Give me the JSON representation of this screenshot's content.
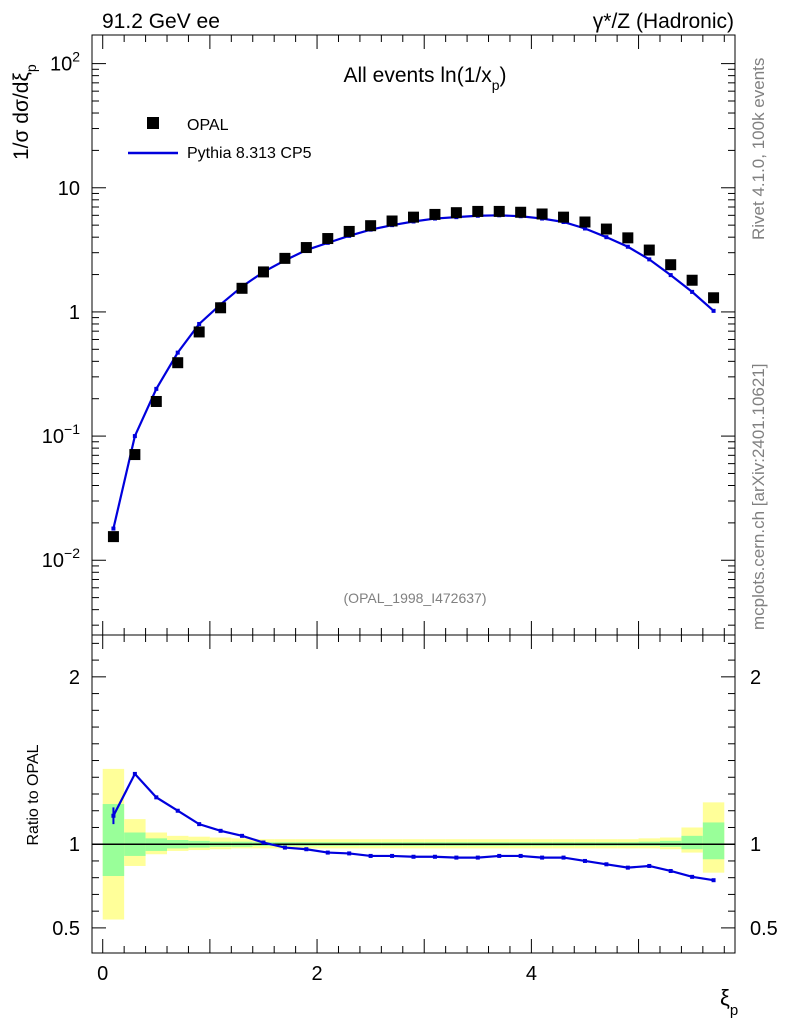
{
  "header": {
    "left": "91.2 GeV ee",
    "right": "γ*/Z (Hadronic)"
  },
  "side_text": {
    "rivet": "Rivet 4.1.0,  100k events",
    "mcplots": "mcplots.cern.ch [arXiv:2401.10621]"
  },
  "chart_data": [
    {
      "type": "scatter",
      "panel": "main",
      "title": "All events ln(1/x_p)",
      "title_main": "All events ln(1/x",
      "title_sub": "p",
      "title_close": ")",
      "ylabel": "1/σ  dσ/dξ_p",
      "ylabel_main": "1/σ   dσ/dξ",
      "ylabel_sub": "p",
      "yscale": "log",
      "ylim": [
        0.0025,
        170
      ],
      "xlim": [
        -0.1,
        5.9
      ],
      "yticks": [
        {
          "value": 0.01,
          "base": "10",
          "exp": "−2"
        },
        {
          "value": 0.1,
          "base": "10",
          "exp": "−1"
        },
        {
          "value": 1,
          "base": "1",
          "exp": ""
        },
        {
          "value": 10,
          "base": "10",
          "exp": ""
        },
        {
          "value": 100,
          "base": "10",
          "exp": "2"
        }
      ],
      "legend": [
        {
          "name": "OPAL",
          "marker": "square",
          "color": "#000000"
        },
        {
          "name": "Pythia 8.313 CP5",
          "marker": "line",
          "color": "#0000dd"
        }
      ],
      "watermark": "(OPAL_1998_I472637)",
      "x": [
        0.1,
        0.3,
        0.5,
        0.7,
        0.9,
        1.1,
        1.3,
        1.5,
        1.7,
        1.9,
        2.1,
        2.3,
        2.5,
        2.7,
        2.9,
        3.1,
        3.3,
        3.5,
        3.7,
        3.9,
        4.1,
        4.3,
        4.5,
        4.7,
        4.9,
        5.1,
        5.3,
        5.5,
        5.7
      ],
      "series": [
        {
          "name": "OPAL",
          "values": [
            0.0155,
            0.071,
            0.19,
            0.39,
            0.69,
            1.08,
            1.55,
            2.1,
            2.7,
            3.3,
            3.9,
            4.45,
            4.95,
            5.4,
            5.8,
            6.1,
            6.3,
            6.45,
            6.45,
            6.35,
            6.15,
            5.8,
            5.3,
            4.65,
            3.95,
            3.15,
            2.4,
            1.8,
            1.3
          ]
        },
        {
          "name": "Pythia 8.313 CP5",
          "values": [
            0.018,
            0.1,
            0.24,
            0.47,
            0.8,
            1.15,
            1.6,
            2.1,
            2.6,
            3.15,
            3.6,
            4.1,
            4.6,
            5.0,
            5.35,
            5.65,
            5.8,
            5.95,
            6.0,
            5.9,
            5.65,
            5.3,
            4.7,
            4.0,
            3.35,
            2.65,
            1.98,
            1.45,
            1.02
          ]
        }
      ]
    },
    {
      "type": "line",
      "panel": "ratio",
      "ylabel": "Ratio to OPAL",
      "xlabel": "ξ_p",
      "xlabel_main": "ξ",
      "xlabel_sub": "p",
      "ylim": [
        0.35,
        2.25
      ],
      "xlim": [
        -0.1,
        5.9
      ],
      "yticks": [
        "0.5",
        "1",
        "2"
      ],
      "ytick_values": [
        0.5,
        1,
        2
      ],
      "xticks": [
        "0",
        "2",
        "4"
      ],
      "xtick_values": [
        0,
        2,
        4
      ],
      "x": [
        0.1,
        0.3,
        0.5,
        0.7,
        0.9,
        1.1,
        1.3,
        1.5,
        1.7,
        1.9,
        2.1,
        2.3,
        2.5,
        2.7,
        2.9,
        3.1,
        3.3,
        3.5,
        3.7,
        3.9,
        4.1,
        4.3,
        4.5,
        4.7,
        4.9,
        5.1,
        5.3,
        5.5,
        5.7
      ],
      "series": [
        {
          "name": "Pythia 8.313 CP5 / OPAL",
          "values": [
            1.17,
            1.42,
            1.28,
            1.2,
            1.12,
            1.08,
            1.05,
            1.01,
            0.98,
            0.97,
            0.95,
            0.945,
            0.93,
            0.93,
            0.925,
            0.925,
            0.92,
            0.92,
            0.93,
            0.93,
            0.92,
            0.92,
            0.9,
            0.88,
            0.86,
            0.87,
            0.84,
            0.805,
            0.785
          ]
        }
      ],
      "error_yellow": [
        [
          0.55,
          1.45
        ],
        [
          0.87,
          1.15
        ],
        [
          0.94,
          1.07
        ],
        [
          0.96,
          1.05
        ],
        [
          0.965,
          1.045
        ],
        [
          0.97,
          1.04
        ],
        [
          0.975,
          1.035
        ],
        [
          0.975,
          1.03
        ],
        [
          0.975,
          1.03
        ],
        [
          0.975,
          1.03
        ],
        [
          0.975,
          1.03
        ],
        [
          0.975,
          1.03
        ],
        [
          0.975,
          1.03
        ],
        [
          0.975,
          1.03
        ],
        [
          0.975,
          1.03
        ],
        [
          0.975,
          1.03
        ],
        [
          0.975,
          1.03
        ],
        [
          0.975,
          1.03
        ],
        [
          0.975,
          1.03
        ],
        [
          0.975,
          1.03
        ],
        [
          0.975,
          1.03
        ],
        [
          0.975,
          1.03
        ],
        [
          0.975,
          1.03
        ],
        [
          0.975,
          1.03
        ],
        [
          0.975,
          1.03
        ],
        [
          0.975,
          1.035
        ],
        [
          0.97,
          1.04
        ],
        [
          0.95,
          1.1
        ],
        [
          0.83,
          1.25
        ]
      ],
      "error_green": [
        [
          0.81,
          1.24
        ],
        [
          0.93,
          1.07
        ],
        [
          0.96,
          1.035
        ],
        [
          0.975,
          1.025
        ],
        [
          0.98,
          1.02
        ],
        [
          0.985,
          1.015
        ],
        [
          0.985,
          1.015
        ],
        [
          0.99,
          1.012
        ],
        [
          0.99,
          1.012
        ],
        [
          0.99,
          1.012
        ],
        [
          0.99,
          1.012
        ],
        [
          0.99,
          1.012
        ],
        [
          0.99,
          1.012
        ],
        [
          0.99,
          1.012
        ],
        [
          0.99,
          1.012
        ],
        [
          0.99,
          1.012
        ],
        [
          0.99,
          1.012
        ],
        [
          0.99,
          1.012
        ],
        [
          0.99,
          1.012
        ],
        [
          0.99,
          1.012
        ],
        [
          0.99,
          1.012
        ],
        [
          0.99,
          1.012
        ],
        [
          0.99,
          1.012
        ],
        [
          0.99,
          1.012
        ],
        [
          0.99,
          1.012
        ],
        [
          0.99,
          1.015
        ],
        [
          0.985,
          1.02
        ],
        [
          0.97,
          1.05
        ],
        [
          0.91,
          1.13
        ]
      ]
    }
  ]
}
